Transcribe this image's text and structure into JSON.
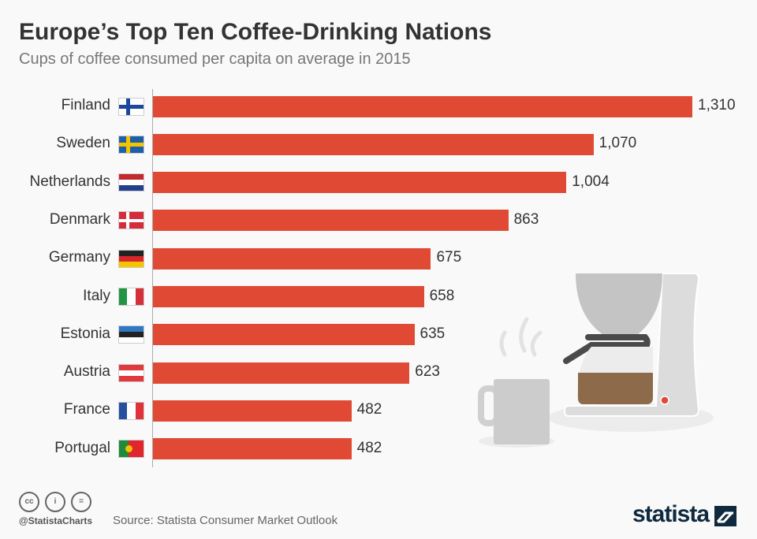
{
  "header": {
    "title": "Europe’s Top Ten Coffee-Drinking Nations",
    "subtitle": "Cups of coffee consumed per capita on average in 2015"
  },
  "chart_data": {
    "type": "bar",
    "orientation": "horizontal",
    "title": "Europe’s Top Ten Coffee-Drinking Nations",
    "subtitle": "Cups of coffee consumed per capita on average in 2015",
    "categories": [
      "Finland",
      "Sweden",
      "Netherlands",
      "Denmark",
      "Germany",
      "Italy",
      "Estonia",
      "Austria",
      "France",
      "Portugal"
    ],
    "values": [
      1310,
      1070,
      1004,
      863,
      675,
      658,
      635,
      623,
      482,
      482
    ],
    "value_labels": [
      "1,310",
      "1,070",
      "1,004",
      "863",
      "675",
      "658",
      "635",
      "623",
      "482",
      "482"
    ],
    "xlim": [
      0,
      1310
    ],
    "grid": false,
    "bar_color": "#e04a34"
  },
  "footer": {
    "handle": "@StatistaCharts",
    "source": "Source: Statista Consumer Market Outlook",
    "logo": "statista",
    "license_icons": [
      "cc-icon",
      "by-icon",
      "nd-icon"
    ]
  }
}
